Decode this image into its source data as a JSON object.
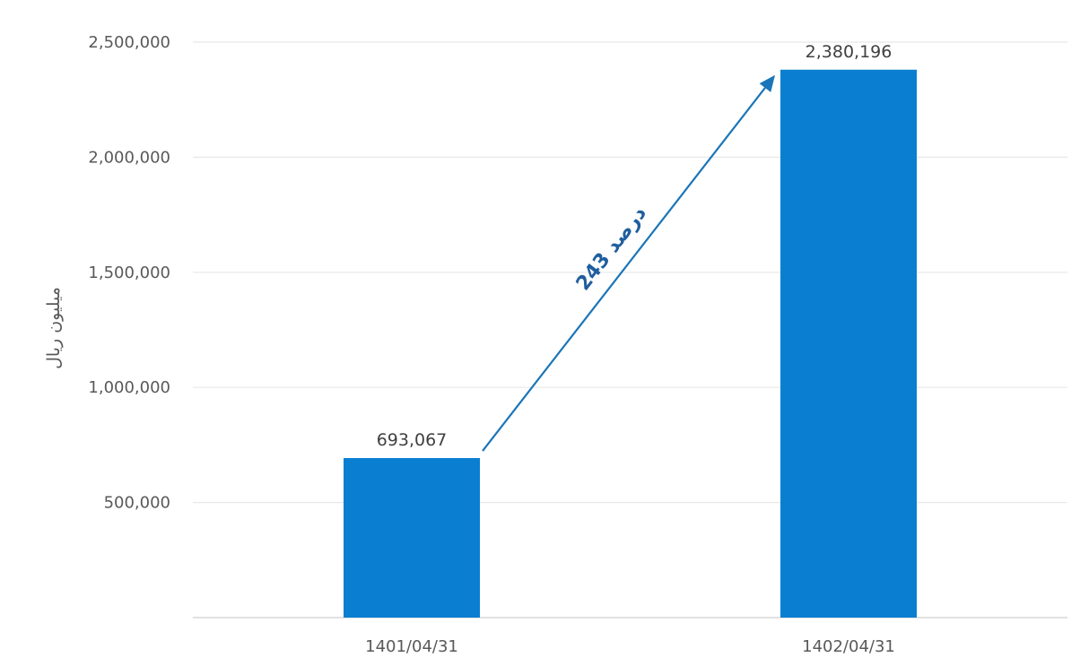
{
  "chart_data": {
    "type": "bar",
    "categories": [
      "1401/04/31",
      "1402/04/31"
    ],
    "values": [
      693067,
      2380196
    ],
    "value_labels": [
      "693,067",
      "2,380,196"
    ],
    "ylabel": "میلیون ریال",
    "ylim": [
      0,
      2500000
    ],
    "yticks": [
      500000,
      1000000,
      1500000,
      2000000,
      2500000
    ],
    "ytick_labels": [
      "500,000",
      "1,000,000",
      "1,500,000",
      "2,000,000",
      "2,500,000"
    ],
    "grid": true,
    "legend": "none",
    "bar_color": "#0a7fd1",
    "annotation": {
      "text": "243 درصد",
      "color": "#1f5e9e",
      "type": "arrow",
      "from_category": "1401/04/31",
      "to_category": "1402/04/31"
    }
  }
}
